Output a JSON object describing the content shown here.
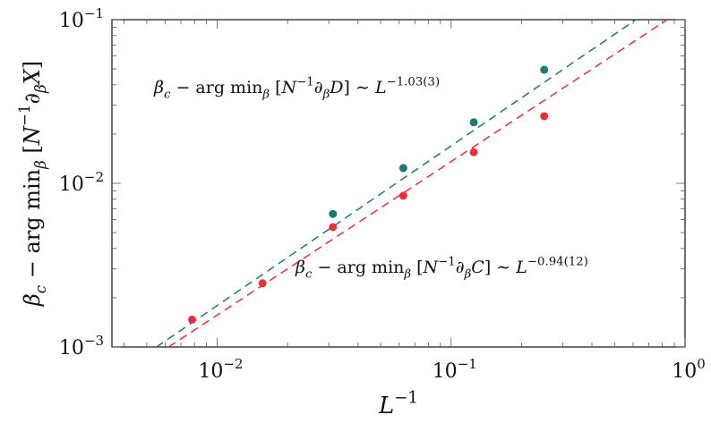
{
  "chart_data": {
    "type": "scatter",
    "xscale": "log",
    "yscale": "log",
    "xlim": [
      0.00355,
      1
    ],
    "ylim": [
      0.001,
      0.1
    ],
    "grid": false,
    "xlabel": {
      "base": "L",
      "sup": "−1"
    },
    "ylabel": [
      {
        "t": "β",
        "pos": "normal",
        "italic": true
      },
      {
        "t": "c",
        "pos": "sub",
        "italic": true
      },
      {
        "t": " − arg min",
        "pos": "normal"
      },
      {
        "t": "β",
        "pos": "sub",
        "italic": true
      },
      {
        "t": " [",
        "pos": "normal"
      },
      {
        "t": "N",
        "pos": "normal",
        "italic": true
      },
      {
        "t": "−1",
        "pos": "sup"
      },
      {
        "t": "∂",
        "pos": "normal",
        "italic": true
      },
      {
        "t": "β",
        "pos": "sub",
        "italic": true
      },
      {
        "t": "X",
        "pos": "normal",
        "italic": true
      },
      {
        "t": "]",
        "pos": "normal"
      }
    ],
    "xticks": [
      {
        "value": 0.01,
        "base": "10",
        "exp": "−2"
      },
      {
        "value": 0.1,
        "base": "10",
        "exp": "−1"
      },
      {
        "value": 1,
        "base": "10",
        "exp": "0"
      }
    ],
    "yticks": [
      {
        "value": 0.001,
        "base": "10",
        "exp": "−3"
      },
      {
        "value": 0.01,
        "base": "10",
        "exp": "−2"
      },
      {
        "value": 0.1,
        "base": "10",
        "exp": "−1"
      }
    ],
    "series": [
      {
        "color": "#1a7a72",
        "x": [
          0.03125,
          0.0625,
          0.125,
          0.25
        ],
        "y": [
          0.0065,
          0.0124,
          0.0236,
          0.0494
        ],
        "fit": {
          "exponent": 1.03,
          "x": [
            0.0055,
            0.617
          ],
          "y": [
            0.001,
            0.1
          ]
        }
      },
      {
        "color": "#e83038",
        "x": [
          0.0078125,
          0.015625,
          0.03125,
          0.0625,
          0.125,
          0.25
        ],
        "y": [
          0.00147,
          0.00245,
          0.0054,
          0.0084,
          0.0155,
          0.0257
        ],
        "fit": {
          "exponent": 0.94,
          "x": [
            0.0062,
            0.84
          ],
          "y": [
            0.001,
            0.1
          ]
        }
      }
    ],
    "annotations": [
      {
        "segments": [
          {
            "t": "β",
            "pos": "normal",
            "italic": true
          },
          {
            "t": "c",
            "pos": "sub",
            "italic": true
          },
          {
            "t": " − arg min",
            "pos": "normal"
          },
          {
            "t": "β",
            "pos": "sub",
            "italic": true
          },
          {
            "t": " [",
            "pos": "normal"
          },
          {
            "t": "N",
            "pos": "normal",
            "italic": true
          },
          {
            "t": "−1",
            "pos": "sup"
          },
          {
            "t": "∂",
            "pos": "normal",
            "italic": true
          },
          {
            "t": "β",
            "pos": "sub",
            "italic": true
          },
          {
            "t": "D",
            "pos": "normal",
            "italic": true
          },
          {
            "t": "] ∼ ",
            "pos": "normal"
          },
          {
            "t": "L",
            "pos": "normal",
            "italic": true
          },
          {
            "t": "−1.03(3)",
            "pos": "sup"
          }
        ]
      },
      {
        "segments": [
          {
            "t": "β",
            "pos": "normal",
            "italic": true
          },
          {
            "t": "c",
            "pos": "sub",
            "italic": true
          },
          {
            "t": " − arg min",
            "pos": "normal"
          },
          {
            "t": "β",
            "pos": "sub",
            "italic": true
          },
          {
            "t": " [",
            "pos": "normal"
          },
          {
            "t": "N",
            "pos": "normal",
            "italic": true
          },
          {
            "t": "−1",
            "pos": "sup"
          },
          {
            "t": "∂",
            "pos": "normal",
            "italic": true
          },
          {
            "t": "β",
            "pos": "sub",
            "italic": true
          },
          {
            "t": "C",
            "pos": "normal",
            "italic": true
          },
          {
            "t": "] ∼ ",
            "pos": "normal"
          },
          {
            "t": "L",
            "pos": "normal",
            "italic": true
          },
          {
            "t": "−0.94(12)",
            "pos": "sup"
          }
        ]
      }
    ]
  }
}
